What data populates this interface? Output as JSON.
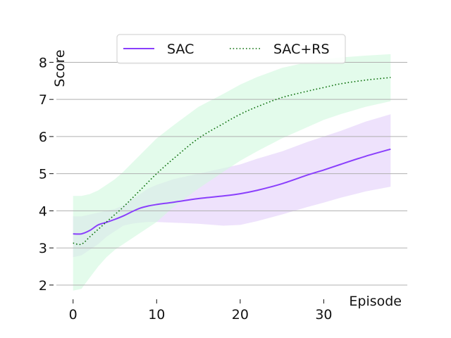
{
  "chart_data": {
    "type": "line",
    "title": "",
    "xlabel": "Episode",
    "ylabel": "Score",
    "xlim": [
      -2,
      40
    ],
    "ylim": [
      1.75,
      8.35
    ],
    "xticks": [
      0,
      10,
      20,
      30
    ],
    "yticks": [
      2,
      3,
      4,
      5,
      6,
      7,
      8
    ],
    "grid": "horizontal",
    "legend": {
      "placement": "top-center"
    },
    "series": [
      {
        "name": "SAC",
        "style": "solid",
        "color": "#8a3ffc",
        "band_color": "#e3d1fa",
        "x": [
          0,
          1,
          2,
          3,
          4,
          5,
          6,
          7,
          8,
          9,
          10,
          12,
          15,
          18,
          20,
          22,
          25,
          28,
          30,
          32,
          35,
          38
        ],
        "values": [
          3.38,
          3.38,
          3.47,
          3.62,
          3.69,
          3.77,
          3.86,
          3.97,
          4.07,
          4.13,
          4.17,
          4.23,
          4.33,
          4.4,
          4.46,
          4.55,
          4.73,
          4.96,
          5.1,
          5.25,
          5.47,
          5.66
        ],
        "band_low": [
          2.75,
          2.8,
          2.95,
          3.1,
          3.3,
          3.45,
          3.6,
          3.65,
          3.68,
          3.7,
          3.7,
          3.68,
          3.65,
          3.6,
          3.62,
          3.72,
          3.9,
          4.1,
          4.22,
          4.35,
          4.52,
          4.65
        ],
        "band_high": [
          3.85,
          3.85,
          3.9,
          3.95,
          4.0,
          4.05,
          4.15,
          4.3,
          4.45,
          4.6,
          4.7,
          4.85,
          5.0,
          5.15,
          5.25,
          5.4,
          5.6,
          5.85,
          6.0,
          6.15,
          6.4,
          6.6
        ]
      },
      {
        "name": "SAC+RS",
        "style": "dotted",
        "color": "#0a6e0a",
        "band_color": "#d2f8de",
        "x": [
          0,
          1,
          2,
          3,
          4,
          5,
          6,
          8,
          10,
          12,
          15,
          18,
          20,
          22,
          25,
          28,
          30,
          32,
          35,
          38
        ],
        "values": [
          3.13,
          3.1,
          3.3,
          3.5,
          3.7,
          3.9,
          4.1,
          4.55,
          5.0,
          5.4,
          5.95,
          6.35,
          6.6,
          6.8,
          7.05,
          7.22,
          7.32,
          7.42,
          7.52,
          7.59
        ],
        "band_low": [
          1.85,
          1.9,
          2.2,
          2.5,
          2.75,
          2.95,
          3.1,
          3.4,
          3.7,
          4.1,
          4.6,
          5.05,
          5.35,
          5.6,
          5.95,
          6.25,
          6.45,
          6.6,
          6.8,
          6.95
        ],
        "band_high": [
          4.4,
          4.4,
          4.45,
          4.55,
          4.7,
          4.85,
          5.05,
          5.5,
          5.95,
          6.3,
          6.8,
          7.15,
          7.4,
          7.6,
          7.85,
          8.0,
          8.08,
          8.13,
          8.18,
          8.22
        ]
      }
    ]
  }
}
